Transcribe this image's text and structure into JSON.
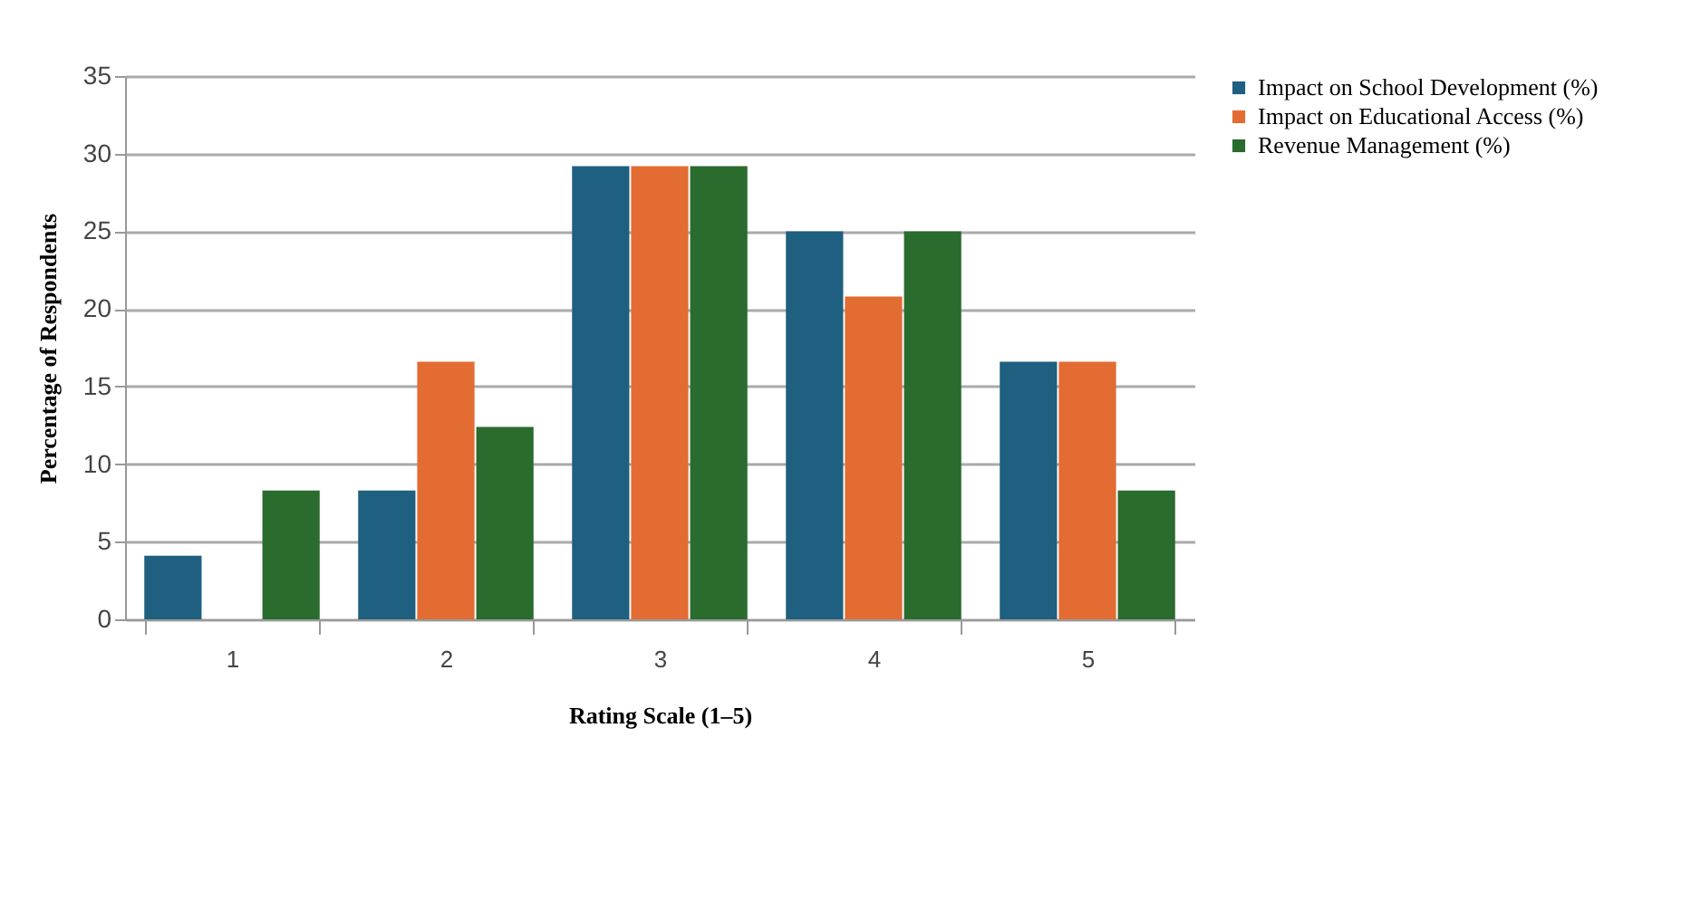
{
  "chart_data": {
    "type": "bar",
    "xlabel": "Rating Scale (1–5)",
    "ylabel": "Percentage of Respondents",
    "categories": [
      "1",
      "2",
      "3",
      "4",
      "5"
    ],
    "series": [
      {
        "name": "Impact on School Development (%)",
        "color": "#1f5f7f",
        "values": [
          4.1,
          8.3,
          29.2,
          25,
          16.6
        ]
      },
      {
        "name": "Impact on Educational Access (%)",
        "color": "#e36c33",
        "values": [
          0,
          16.6,
          29.2,
          20.8,
          16.6
        ]
      },
      {
        "name": "Revenue Management (%)",
        "color": "#2a6b2e",
        "values": [
          8.3,
          12.4,
          29.2,
          25,
          8.3
        ]
      }
    ],
    "ylim": [
      0,
      35
    ],
    "yticks": [
      0,
      5,
      10,
      15,
      20,
      25,
      30,
      35
    ],
    "grid": "y",
    "legend": "right"
  }
}
